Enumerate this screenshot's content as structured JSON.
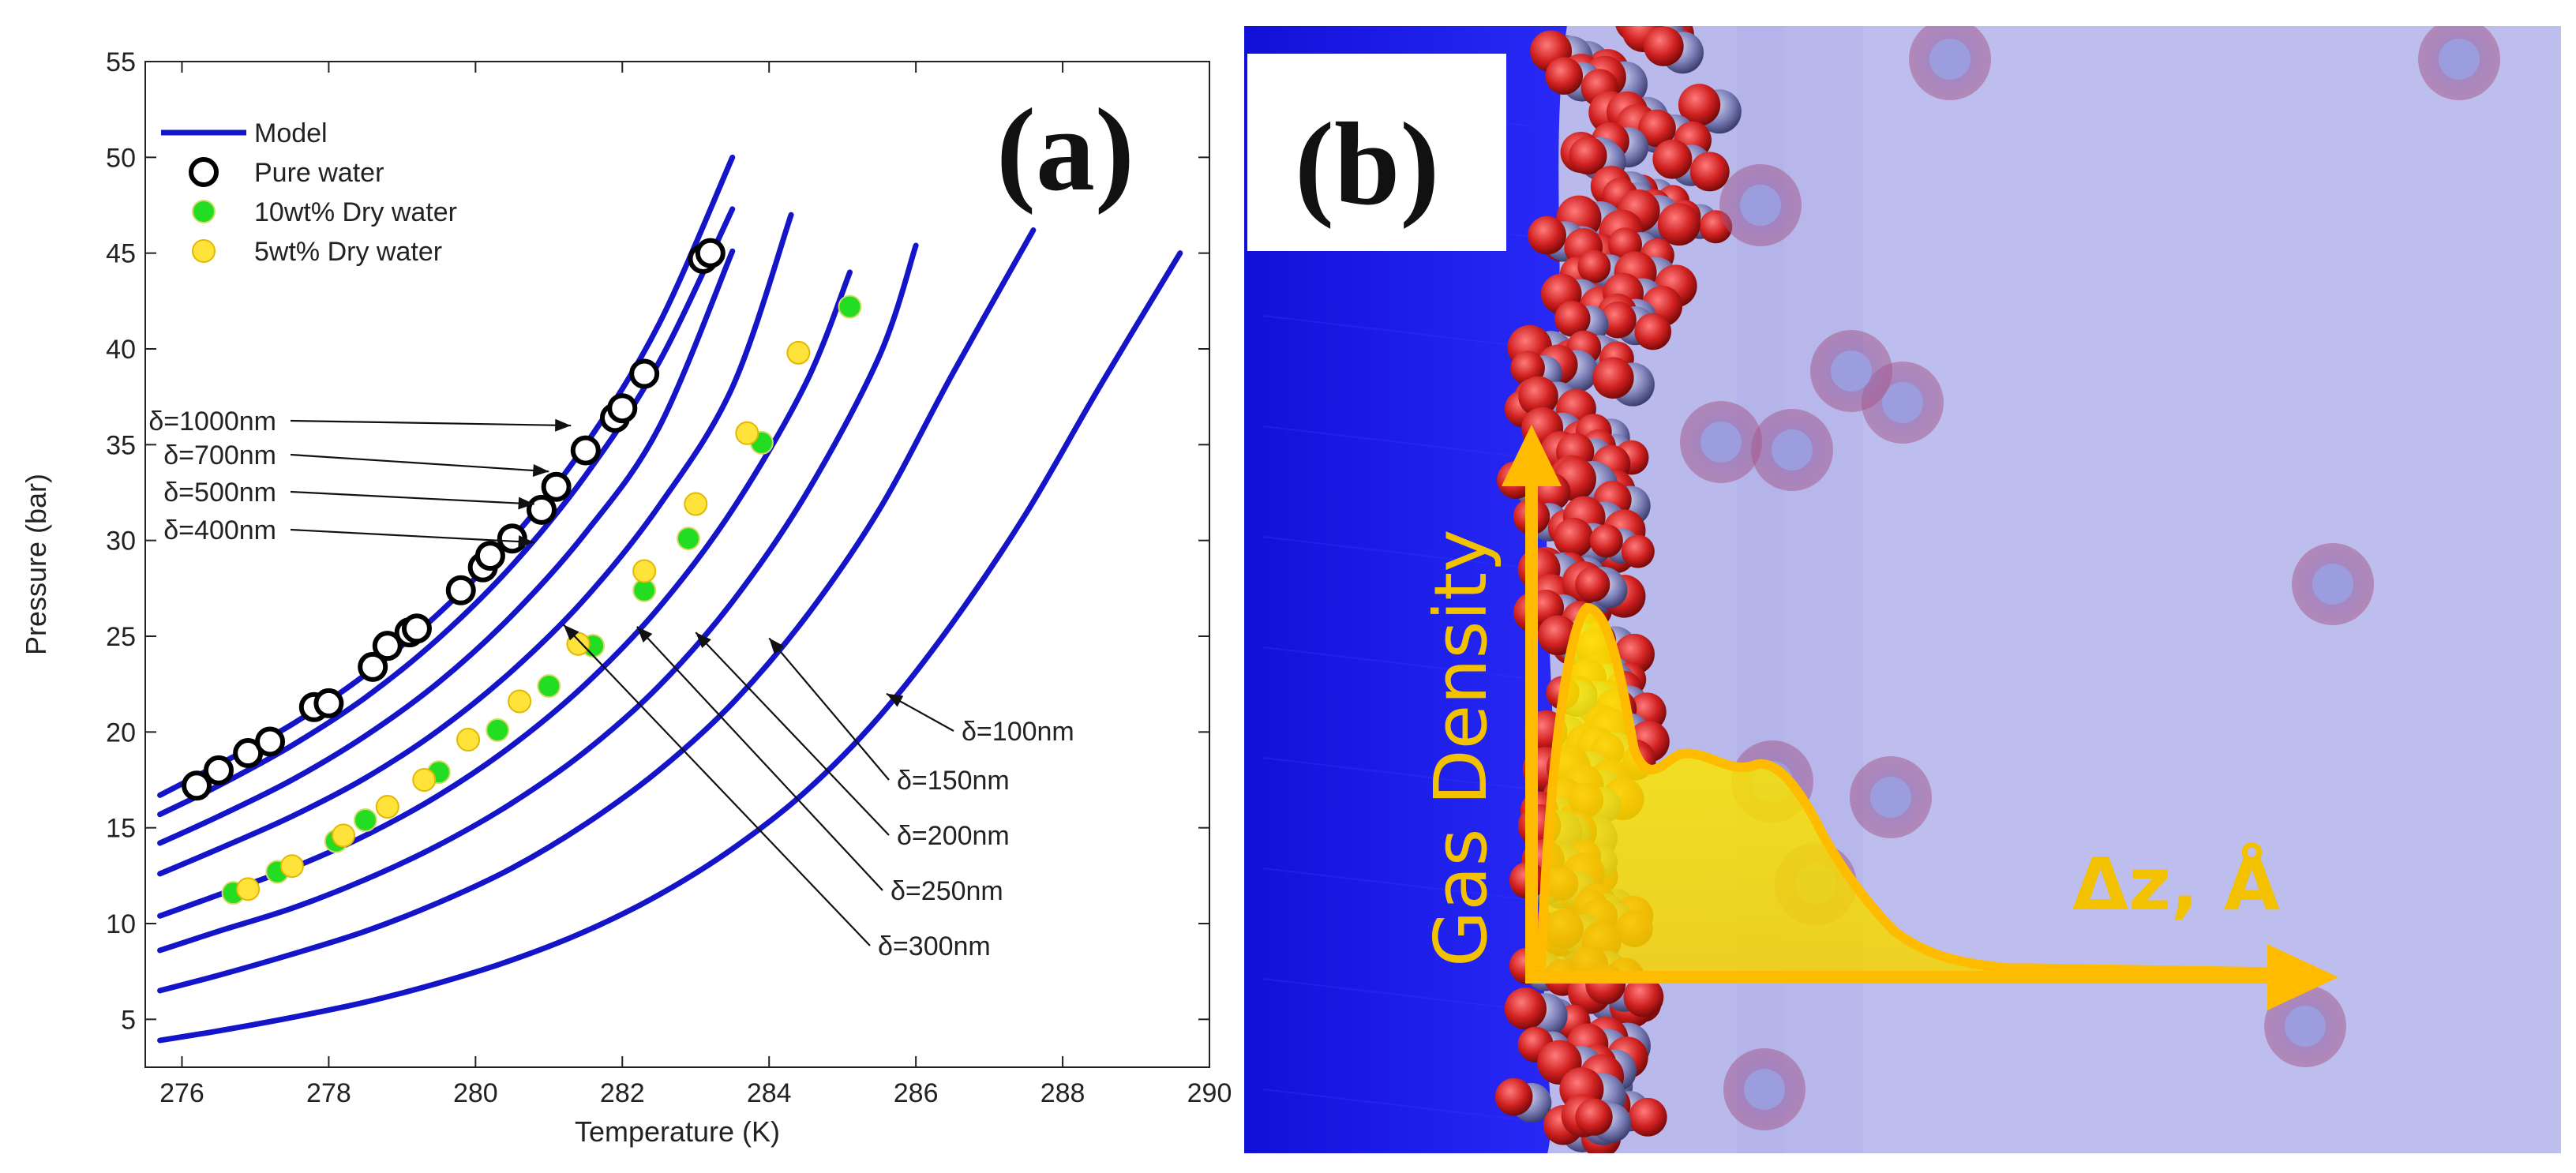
{
  "chart_data": {
    "type": "line+scatter",
    "panel_label": "(a)",
    "xlabel": "Temperature (K)",
    "ylabel": "Pressure (bar)",
    "xlim": [
      275.5,
      290
    ],
    "ylim": [
      2.5,
      55
    ],
    "xticks": [
      276,
      278,
      280,
      282,
      284,
      286,
      288,
      290
    ],
    "yticks": [
      5,
      10,
      15,
      20,
      25,
      30,
      35,
      40,
      45,
      50,
      55
    ],
    "grid": false,
    "legend_position": "top-left",
    "legend": [
      {
        "label": "Model",
        "kind": "line",
        "color": "#1414c8"
      },
      {
        "label": "Pure water",
        "kind": "open-circle",
        "color": "#000000"
      },
      {
        "label": "10wt% Dry water",
        "kind": "filled-circle",
        "color": "#22dd22"
      },
      {
        "label": "5wt% Dry water",
        "kind": "filled-circle",
        "color": "#ffe23a"
      }
    ],
    "model_curves": [
      {
        "label": "δ=1000nm",
        "x": [
          275.7,
          276.5,
          277.5,
          278.5,
          279.5,
          280.5,
          281.5,
          282.5,
          283.5
        ],
        "y": [
          16.7,
          18.3,
          20.4,
          23.0,
          26.2,
          30.1,
          35.0,
          41.3,
          50.0
        ]
      },
      {
        "label": "δ=700nm",
        "x": [
          275.7,
          276.5,
          277.5,
          278.5,
          279.5,
          280.5,
          281.5,
          282.5,
          283.5
        ],
        "y": [
          15.7,
          17.2,
          19.3,
          21.8,
          24.9,
          28.7,
          33.4,
          39.3,
          47.3
        ]
      },
      {
        "label": "δ=500nm",
        "x": [
          275.7,
          276.5,
          277.5,
          278.5,
          279.5,
          280.5,
          281.5,
          282.5,
          283.5
        ],
        "y": [
          14.2,
          15.6,
          17.5,
          19.8,
          22.6,
          26.1,
          30.4,
          35.9,
          45.1
        ]
      },
      {
        "label": "δ=400nm",
        "x": [
          275.7,
          276.5,
          277.5,
          278.5,
          279.5,
          280.5,
          281.5,
          282.5,
          283.5,
          284.3
        ],
        "y": [
          12.6,
          13.9,
          15.6,
          17.6,
          20.1,
          23.2,
          27.0,
          31.8,
          38.0,
          47.0
        ]
      },
      {
        "label": "δ=300nm",
        "x": [
          275.7,
          276.5,
          277.5,
          278.5,
          279.5,
          280.5,
          281.5,
          282.5,
          283.5,
          284.5,
          285.1
        ],
        "y": [
          10.4,
          11.5,
          12.9,
          14.6,
          16.7,
          19.3,
          22.5,
          26.5,
          31.6,
          38.2,
          44.0
        ]
      },
      {
        "label": "δ=250nm",
        "x": [
          275.7,
          276.5,
          277.5,
          278.5,
          279.5,
          280.5,
          281.5,
          282.5,
          283.5,
          284.5,
          285.5,
          286.0
        ],
        "y": [
          8.6,
          9.6,
          10.8,
          12.3,
          14.1,
          16.3,
          19.0,
          22.4,
          26.8,
          32.4,
          39.6,
          45.4
        ]
      },
      {
        "label": "δ=200nm",
        "x": [
          275.7,
          276.5,
          277.5,
          278.5,
          279.5,
          280.5,
          281.5,
          282.5,
          283.5,
          284.5,
          285.5,
          286.5,
          287.6
        ],
        "y": [
          6.5,
          7.3,
          8.4,
          9.6,
          11.1,
          12.9,
          15.2,
          18.0,
          21.5,
          26.0,
          31.6,
          38.7,
          46.2
        ]
      },
      {
        "label": "δ=150nm",
        "x": [
          275.7,
          276.5,
          277.5,
          278.5,
          279.5,
          280.5,
          281.5,
          282.5,
          283.5,
          284.5,
          285.5,
          286.5,
          287.5,
          288.5,
          289.6
        ],
        "y": [
          3.9,
          4.4,
          5.1,
          5.9,
          6.9,
          8.1,
          9.6,
          11.5,
          13.9,
          16.9,
          20.8,
          25.7,
          31.4,
          38.0,
          45.0
        ]
      }
    ],
    "series": [
      {
        "name": "Pure water",
        "x": [
          276.2,
          276.5,
          276.9,
          277.2,
          277.8,
          278.0,
          278.6,
          278.8,
          279.1,
          279.2,
          279.8,
          280.1,
          280.2,
          280.5,
          280.9,
          281.1,
          281.5,
          281.9,
          282.0,
          282.3,
          283.1,
          283.2
        ],
        "y": [
          17.2,
          18.0,
          18.9,
          19.5,
          21.3,
          21.5,
          23.4,
          24.5,
          25.2,
          25.4,
          27.4,
          28.6,
          29.2,
          30.1,
          31.6,
          32.8,
          34.7,
          36.4,
          36.9,
          38.7,
          44.7,
          45.0
        ]
      },
      {
        "name": "10wt% Dry water",
        "x": [
          276.7,
          277.3,
          278.1,
          278.5,
          279.5,
          280.3,
          281.0,
          281.6,
          282.3,
          282.9,
          283.9,
          285.1
        ],
        "y": [
          11.6,
          12.7,
          14.3,
          15.4,
          17.9,
          20.1,
          22.4,
          24.5,
          27.4,
          30.1,
          35.1,
          42.2
        ]
      },
      {
        "name": "5wt% Dry water",
        "x": [
          276.9,
          277.5,
          278.2,
          278.8,
          279.3,
          279.9,
          280.6,
          281.4,
          282.3,
          283.0,
          283.7,
          284.4
        ],
        "y": [
          11.8,
          13.0,
          14.6,
          16.1,
          17.5,
          19.6,
          21.6,
          24.6,
          28.4,
          31.9,
          35.6,
          39.8
        ]
      }
    ],
    "annotations": [
      {
        "text": "δ=1000nm",
        "target_x": 281.3,
        "target_y": 36.0
      },
      {
        "text": "δ=700nm",
        "target_x": 281.0,
        "target_y": 33.6
      },
      {
        "text": "δ=500nm",
        "target_x": 280.8,
        "target_y": 31.9
      },
      {
        "text": "δ=400nm",
        "target_x": 280.8,
        "target_y": 29.9
      },
      {
        "text": "δ=100nm",
        "target_x": 285.6,
        "target_y": 22.0
      },
      {
        "text": "δ=150nm",
        "target_x": 284.0,
        "target_y": 24.9
      },
      {
        "text": "δ=200nm",
        "target_x": 283.0,
        "target_y": 25.2
      },
      {
        "text": "δ=250nm",
        "target_x": 282.2,
        "target_y": 25.5
      },
      {
        "text": "δ=300nm",
        "target_x": 281.2,
        "target_y": 25.6
      }
    ]
  },
  "panel_b": {
    "label": "(b)",
    "y_axis_label": "Gas Density",
    "x_axis_label": "Δz, Å",
    "colors": {
      "arrow": "#ffbb00",
      "water": "#1818f0",
      "gas_phase": "#b9b9ec"
    }
  }
}
